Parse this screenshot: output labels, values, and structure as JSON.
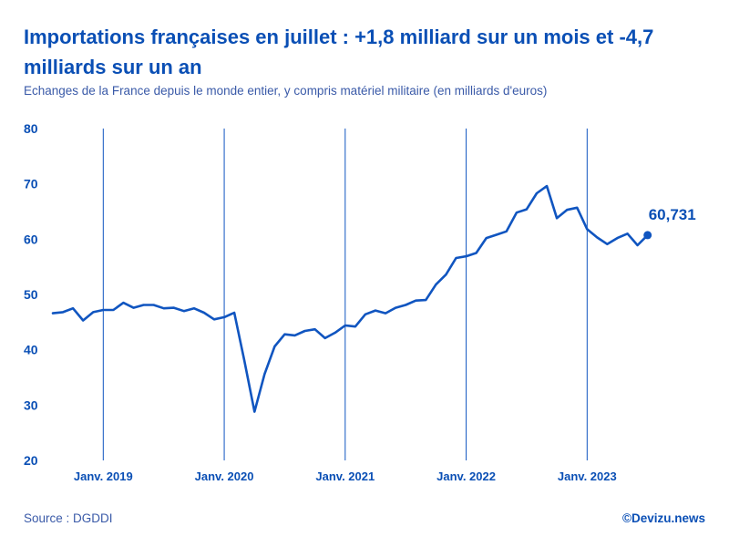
{
  "header": {
    "title": "Importations françaises en juillet : +1,8 milliard sur un mois et -4,7 milliards sur un an",
    "subtitle": "Echanges de la France depuis le monde entier, y compris matériel militaire (en milliards d'euros)"
  },
  "footer": {
    "source": "Source : DGDDI",
    "credit": "©Devizu.news"
  },
  "colors": {
    "accent": "#0a4fb5",
    "line": "#1055c0",
    "background": "#ffffff"
  },
  "chart_data": {
    "type": "line",
    "title": "Importations françaises en juillet : +1,8 milliard sur un mois et -4,7 milliards sur un an",
    "ylabel": "Milliards d'euros",
    "ylim": [
      20,
      80
    ],
    "yticks": [
      20,
      30,
      40,
      50,
      60,
      70,
      80
    ],
    "start_month": "2018-08",
    "x_ticks": [
      {
        "label": "Janv. 2019",
        "index": 5
      },
      {
        "label": "Janv. 2020",
        "index": 17
      },
      {
        "label": "Janv. 2021",
        "index": 29
      },
      {
        "label": "Janv. 2022",
        "index": 41
      },
      {
        "label": "Janv. 2023",
        "index": 53
      }
    ],
    "series": [
      {
        "name": "Importations",
        "values": [
          46.6,
          46.8,
          47.5,
          45.3,
          46.8,
          47.2,
          47.2,
          48.5,
          47.6,
          48.1,
          48.1,
          47.5,
          47.6,
          47.0,
          47.5,
          46.7,
          45.5,
          45.9,
          46.7,
          38.0,
          28.8,
          35.6,
          40.6,
          42.8,
          42.6,
          43.4,
          43.7,
          42.1,
          43.1,
          44.4,
          44.2,
          46.4,
          47.1,
          46.6,
          47.6,
          48.1,
          48.9,
          49.0,
          51.8,
          53.6,
          56.6,
          56.9,
          57.5,
          60.2,
          60.8,
          61.4,
          64.8,
          65.4,
          68.3,
          69.6,
          63.8,
          65.3,
          65.7,
          61.8,
          60.3,
          59.1,
          60.2,
          61.0,
          58.9,
          60.731
        ]
      }
    ],
    "last_value_label": "60,731"
  }
}
